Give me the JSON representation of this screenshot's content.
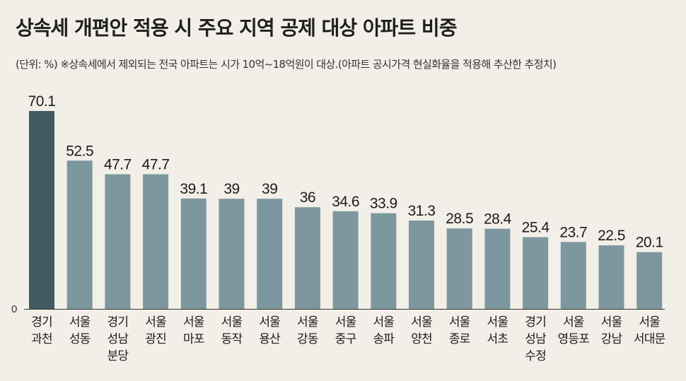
{
  "chart_data": {
    "type": "bar",
    "title": "상속세 개편안 적용 시 주요 지역 공제 대상 아파트 비중",
    "subtitle": "(단위: %) ※상속세에서 제외되는 전국 아파트는 시가 10억~18억원이 대상.(아파트 공시가격 현실화율을 적용해 추산한 추정치)",
    "categories": [
      [
        "경기",
        "과천"
      ],
      [
        "서울",
        "성동"
      ],
      [
        "경기",
        "성남",
        "분당"
      ],
      [
        "서울",
        "광진"
      ],
      [
        "서울",
        "마포"
      ],
      [
        "서울",
        "동작"
      ],
      [
        "서울",
        "용산"
      ],
      [
        "서울",
        "강동"
      ],
      [
        "서울",
        "중구"
      ],
      [
        "서울",
        "송파"
      ],
      [
        "서울",
        "양천"
      ],
      [
        "서울",
        "종로"
      ],
      [
        "서울",
        "서초"
      ],
      [
        "경기",
        "성남",
        "수정"
      ],
      [
        "서울",
        "영등포"
      ],
      [
        "서울",
        "강남"
      ],
      [
        "서울",
        "서대문"
      ]
    ],
    "values": [
      70.1,
      52.5,
      47.7,
      47.7,
      39.1,
      39,
      39,
      36,
      34.6,
      33.9,
      31.3,
      28.5,
      28.4,
      25.4,
      23.7,
      22.5,
      20.1
    ],
    "value_labels": [
      "70.1",
      "52.5",
      "47.7",
      "47.7",
      "39.1",
      "39",
      "39",
      "36",
      "34.6",
      "33.9",
      "31.3",
      "28.5",
      "28.4",
      "25.4",
      "23.7",
      "22.5",
      "20.1"
    ],
    "ylim": [
      0,
      70.1
    ],
    "y_zero_label": "0",
    "xlabel": "",
    "ylabel": "",
    "grid": false,
    "colors": {
      "highlight": "#435a60",
      "bar": "#7d979e",
      "axis": "#333333"
    }
  }
}
